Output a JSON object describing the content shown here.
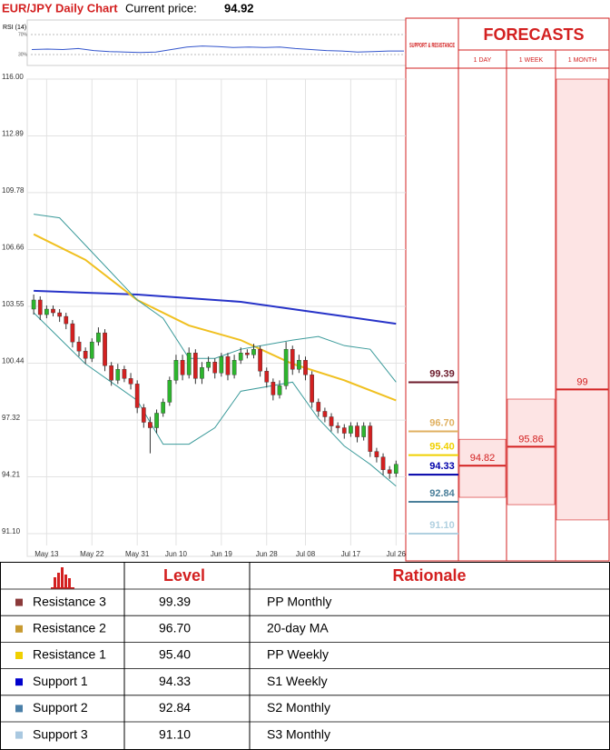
{
  "header": {
    "title": "EUR/JPY Daily Chart",
    "price_label": "Current price:",
    "price": "94.92"
  },
  "chart_data": [
    {
      "type": "candlestick",
      "up_color": "#2db52d",
      "down_color": "#d32020",
      "grid": true,
      "xlim": [
        -1,
        57.5
      ],
      "ylim": [
        91.1,
        116
      ],
      "yticks": [
        {
          "value": 116,
          "label": "116.00"
        },
        112.89,
        109.78,
        106.66,
        103.55,
        100.44,
        97.32,
        94.21,
        {
          "value": 91.1,
          "label": "91.10"
        }
      ],
      "xticks": [
        {
          "value": 2,
          "label": "May 13"
        },
        {
          "value": 9,
          "label": "May 22"
        },
        {
          "value": 16,
          "label": "May 31"
        },
        {
          "value": 22,
          "label": "Jun 10"
        },
        {
          "value": 29,
          "label": "Jun 19"
        },
        {
          "value": 36,
          "label": "Jun 28"
        },
        {
          "value": 42,
          "label": "Jul 08"
        },
        {
          "value": 49,
          "label": "Jul 17"
        },
        {
          "value": 56,
          "label": "Jul 26"
        }
      ],
      "open": [
        103.4,
        103.9,
        103.1,
        103.4,
        103.2,
        103.0,
        102.6,
        101.6,
        101.1,
        100.7,
        101.6,
        102.1,
        100.3,
        99.5,
        100.1,
        99.6,
        99.3,
        98.0,
        97.2,
        96.9,
        97.7,
        98.3,
        99.5,
        100.6,
        99.8,
        101.0,
        99.6,
        100.2,
        100.5,
        99.9,
        100.8,
        99.8,
        100.6,
        101.0,
        100.9,
        101.2,
        100.0,
        99.4,
        98.7,
        99.2,
        101.2,
        100.1,
        100.6,
        99.8,
        98.3,
        97.8,
        97.5,
        97.0,
        96.9,
        96.6,
        97.0,
        96.4,
        97.0,
        95.6,
        95.3,
        94.6,
        94.4
      ],
      "high": [
        104.2,
        104.1,
        103.6,
        103.6,
        103.4,
        103.2,
        102.8,
        101.9,
        101.3,
        101.8,
        102.4,
        102.3,
        100.5,
        100.4,
        100.3,
        99.9,
        99.5,
        98.2,
        97.5,
        97.9,
        98.5,
        99.7,
        100.9,
        100.9,
        101.3,
        101.2,
        100.5,
        100.8,
        100.7,
        101.0,
        101.0,
        100.9,
        101.3,
        101.2,
        101.5,
        101.4,
        100.2,
        99.6,
        99.5,
        101.6,
        101.4,
        100.9,
        100.8,
        100.0,
        98.5,
        98.0,
        97.7,
        97.2,
        97.1,
        97.2,
        97.2,
        97.2,
        97.2,
        95.8,
        95.5,
        94.8,
        95.1
      ],
      "low": [
        103.1,
        102.8,
        102.9,
        103.0,
        102.7,
        102.3,
        101.3,
        100.8,
        100.4,
        100.5,
        101.4,
        100.0,
        99.2,
        99.3,
        99.4,
        99.0,
        97.7,
        96.9,
        95.5,
        96.6,
        97.5,
        98.1,
        99.3,
        99.5,
        99.6,
        99.3,
        99.3,
        100.0,
        99.6,
        99.7,
        99.5,
        99.6,
        100.4,
        100.7,
        100.7,
        99.7,
        99.1,
        98.4,
        98.5,
        99.0,
        99.8,
        99.9,
        99.5,
        98.0,
        97.5,
        97.2,
        96.7,
        96.6,
        96.3,
        96.4,
        96.1,
        96.2,
        95.3,
        95.0,
        94.3,
        94.1,
        94.2
      ],
      "close": [
        103.9,
        103.1,
        103.4,
        103.2,
        103.0,
        102.6,
        101.6,
        101.1,
        100.7,
        101.6,
        102.1,
        100.3,
        99.5,
        100.1,
        99.6,
        99.3,
        98.0,
        97.2,
        96.9,
        97.7,
        98.3,
        99.5,
        100.6,
        99.8,
        101.0,
        99.6,
        100.2,
        100.5,
        99.9,
        100.8,
        99.8,
        100.6,
        101.0,
        100.9,
        101.2,
        100.0,
        99.4,
        98.7,
        99.2,
        101.2,
        100.1,
        100.6,
        99.8,
        98.3,
        97.8,
        97.5,
        97.0,
        96.9,
        96.6,
        97.0,
        96.4,
        97.0,
        95.6,
        95.3,
        94.6,
        94.4,
        94.9
      ],
      "lines": [
        {
          "color": "#2733c8",
          "x": [
            0,
            8,
            16,
            24,
            32,
            40,
            48,
            56
          ],
          "values": [
            104.4,
            104.3,
            104.2,
            104.0,
            103.8,
            103.4,
            103.0,
            102.6
          ]
        },
        {
          "color": "#f0c020",
          "x": [
            0,
            8,
            16,
            24,
            32,
            40,
            48,
            56
          ],
          "values": [
            107.5,
            106.1,
            103.9,
            102.5,
            101.7,
            100.4,
            99.5,
            98.4
          ]
        },
        {
          "color": "#3a9a9a",
          "x": [
            0,
            4,
            8,
            16,
            20,
            24,
            28,
            32,
            40,
            44,
            48,
            52,
            56
          ],
          "values": [
            108.6,
            108.4,
            106.9,
            103.9,
            102.9,
            100.7,
            100.7,
            101.2,
            101.7,
            101.9,
            101.4,
            101.2,
            99.4
          ]
        },
        {
          "color": "#3a9a9a",
          "x": [
            0,
            8,
            16,
            20,
            24,
            28,
            32,
            40,
            44,
            48,
            52,
            56
          ],
          "values": [
            103.2,
            100.4,
            98.4,
            96.0,
            96.0,
            96.9,
            98.9,
            99.4,
            97.4,
            95.9,
            94.9,
            93.7
          ]
        }
      ]
    },
    {
      "type": "line",
      "title": "RSI (14)",
      "color": "#3355cc",
      "ylim": [
        0,
        100
      ],
      "yticks": [
        {
          "value": 70,
          "label": "70%"
        },
        {
          "value": 30,
          "label": "30%"
        }
      ],
      "values": [
        40,
        41,
        40,
        42,
        38,
        36,
        35,
        34,
        35,
        40,
        45,
        47,
        46,
        44,
        45,
        44,
        45,
        42,
        40,
        38,
        37,
        35,
        36,
        37,
        37
      ]
    },
    {
      "type": "levels",
      "title": "FORECASTS",
      "levels_title": "SUPPORT & RESISTANCE",
      "values": [
        99.39,
        96.7,
        95.4,
        94.33,
        92.84,
        91.1
      ],
      "value_labels": [
        "99.39",
        "96.70",
        "95.40",
        "94.33",
        "92.84",
        "91.10"
      ],
      "colors": [
        "#6b1a2a",
        "#e0b060",
        "#f0d000",
        "#0000aa",
        "#4a7f9a",
        "#b0d0e0"
      ],
      "columns": [
        "1 DAY",
        "1 WEEK",
        "1 MONTH"
      ],
      "forecasts": [
        94.82,
        95.86,
        99
      ],
      "ranges": [
        [
          93.09,
          96.27
        ],
        [
          92.69,
          98.47
        ],
        [
          91.85,
          116
        ]
      ]
    }
  ],
  "table": {
    "header": [
      "Level",
      "Rationale"
    ],
    "rows": [
      {
        "color": "#8b3a3a",
        "cells": [
          "Resistance 3",
          "99.39",
          "PP Monthly"
        ]
      },
      {
        "color": "#c89a30",
        "cells": [
          "Resistance 2",
          "96.70",
          "20-day MA"
        ]
      },
      {
        "color": "#f0d000",
        "cells": [
          "Resistance 1",
          "95.40",
          "PP Weekly"
        ]
      },
      {
        "color": "#0000cc",
        "cells": [
          "Support 1",
          "94.33",
          "S1 Weekly"
        ]
      },
      {
        "color": "#4a7fa8",
        "cells": [
          "Support 2",
          "92.84",
          "S2 Monthly"
        ]
      },
      {
        "color": "#a9c8e0",
        "cells": [
          "Support 3",
          "91.10",
          "S3 Monthly"
        ]
      }
    ]
  }
}
